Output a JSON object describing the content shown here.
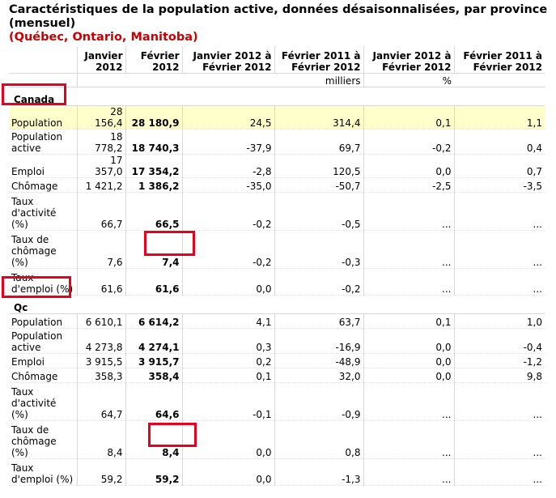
{
  "title": "Caractéristiques de la population active, données désaisonnalisées, par province (mensuel)",
  "subtitle": "(Québec, Ontario, Manitoba)",
  "columns": [
    "Janvier 2012",
    "Février 2012",
    "Janvier 2012 à Février 2012",
    "Février 2011 à Février 2012",
    "Janvier 2012 à Février 2012",
    "Février 2011 à Février 2012"
  ],
  "units": {
    "left": "milliers",
    "right": "%"
  },
  "groups": [
    {
      "name": "Canada",
      "rows": [
        {
          "label": "Population",
          "values": [
            "28 156,4",
            "28 180,9",
            "24,5",
            "314,4",
            "0,1",
            "1,1"
          ]
        },
        {
          "label": "Population active",
          "values": [
            "18 778,2",
            "18 740,3",
            "-37,9",
            "69,7",
            "-0,2",
            "0,4"
          ]
        },
        {
          "label": "Emploi",
          "values": [
            "17 357,0",
            "17 354,2",
            "-2,8",
            "120,5",
            "0,0",
            "0,7"
          ]
        },
        {
          "label": "Chômage",
          "values": [
            "1 421,2",
            "1 386,2",
            "-35,0",
            "-50,7",
            "-2,5",
            "-3,5"
          ]
        },
        {
          "label": "Taux d'activité (%)",
          "values": [
            "66,7",
            "66,5",
            "-0,2",
            "-0,5",
            "...",
            "..."
          ]
        },
        {
          "label": "Taux de chômage (%)",
          "values": [
            "7,6",
            "7,4",
            "-0,2",
            "-0,3",
            "...",
            "..."
          ]
        },
        {
          "label": "Taux d'emploi (%)",
          "values": [
            "61,6",
            "61,6",
            "0,0",
            "-0,2",
            "...",
            "..."
          ]
        }
      ]
    },
    {
      "name": "Qc",
      "rows": [
        {
          "label": "Population",
          "values": [
            "6 610,1",
            "6 614,2",
            "4,1",
            "63,7",
            "0,1",
            "1,0"
          ]
        },
        {
          "label": "Population active",
          "values": [
            "4 273,8",
            "4 274,1",
            "0,3",
            "-16,9",
            "0,0",
            "-0,4"
          ]
        },
        {
          "label": "Emploi",
          "values": [
            "3 915,5",
            "3 915,7",
            "0,2",
            "-48,9",
            "0,0",
            "-1,2"
          ]
        },
        {
          "label": "Chômage",
          "values": [
            "358,3",
            "358,4",
            "0,1",
            "32,0",
            "0,0",
            "9,8"
          ]
        },
        {
          "label": "Taux d'activité (%)",
          "values": [
            "64,7",
            "64,6",
            "-0,1",
            "-0,9",
            "...",
            "..."
          ]
        },
        {
          "label": "Taux de chômage (%)",
          "values": [
            "8,4",
            "8,4",
            "0,0",
            "0,8",
            "...",
            "..."
          ]
        },
        {
          "label": "Taux d'emploi (%)",
          "values": [
            "59,2",
            "59,2",
            "0,0",
            "-1,3",
            "...",
            "..."
          ]
        }
      ]
    }
  ],
  "colors": {
    "highlight": "#ffffcc",
    "annotation": "#e8001c",
    "subtitle": "#cc0000"
  }
}
